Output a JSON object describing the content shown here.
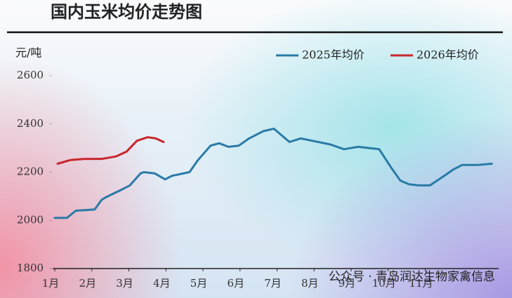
{
  "chart_data": {
    "type": "line",
    "title": "国内玉米均价走势图",
    "y_label": "元/吨",
    "watermark": "公众号 · 青岛润达生物家禽信息",
    "xlim": [
      1,
      13
    ],
    "xticks": [
      {
        "value": 1,
        "label": "1月"
      },
      {
        "value": 2,
        "label": "2月"
      },
      {
        "value": 3,
        "label": "3月"
      },
      {
        "value": 4,
        "label": "4月"
      },
      {
        "value": 5,
        "label": "5月"
      },
      {
        "value": 6,
        "label": "6月"
      },
      {
        "value": 7,
        "label": "7月"
      },
      {
        "value": 8,
        "label": "8月"
      },
      {
        "value": 9,
        "label": "9月"
      },
      {
        "value": 10,
        "label": "10月"
      },
      {
        "value": 11,
        "label": "11月"
      }
    ],
    "ylim": [
      1800,
      2600
    ],
    "yticks": [
      1800,
      2000,
      2200,
      2400,
      2600
    ],
    "legend": "top-right",
    "series": [
      {
        "name": "2025年均价",
        "color": "#2a7aa6",
        "x": [
          1.11,
          1.44,
          1.68,
          2.19,
          2.38,
          2.48,
          2.95,
          3.14,
          3.43,
          3.52,
          3.81,
          4.09,
          4.28,
          4.75,
          4.98,
          5.32,
          5.55,
          5.8,
          6.08,
          6.36,
          6.74,
          7.03,
          7.45,
          7.75,
          8.07,
          8.55,
          8.92,
          9.3,
          9.87,
          10.21,
          10.44,
          10.67,
          10.93,
          11.24,
          11.58,
          11.86,
          12.11,
          12.53,
          12.91
        ],
        "values": [
          2010,
          2010,
          2040,
          2045,
          2085,
          2095,
          2130,
          2145,
          2195,
          2200,
          2195,
          2170,
          2185,
          2200,
          2250,
          2310,
          2320,
          2305,
          2310,
          2340,
          2370,
          2380,
          2325,
          2340,
          2330,
          2315,
          2295,
          2305,
          2295,
          2215,
          2165,
          2150,
          2145,
          2145,
          2180,
          2210,
          2230,
          2230,
          2235
        ]
      },
      {
        "name": "2026年均价",
        "color": "#c8262c",
        "x": [
          1.19,
          1.53,
          1.91,
          2.38,
          2.76,
          3.05,
          3.33,
          3.62,
          3.84,
          4.05
        ],
        "values": [
          2235,
          2250,
          2255,
          2255,
          2265,
          2285,
          2330,
          2345,
          2340,
          2325
        ]
      }
    ]
  }
}
